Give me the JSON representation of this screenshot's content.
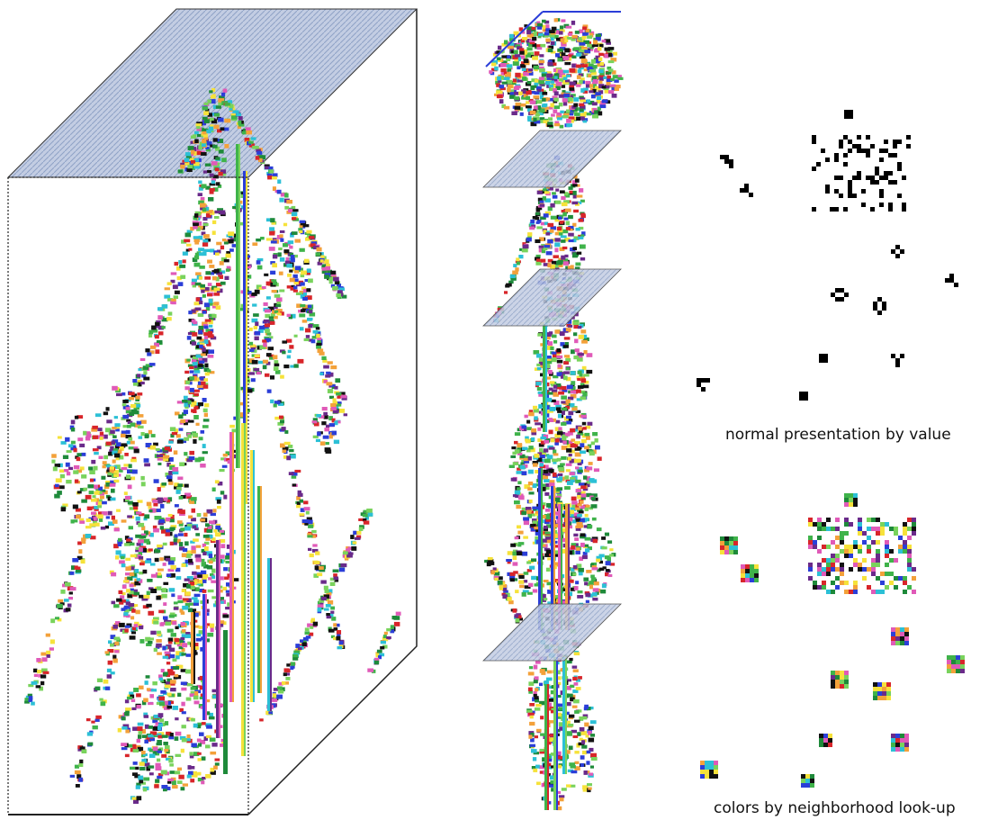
{
  "captions": {
    "value_view": "normal presentation by value",
    "lookup_view": "colors by neighborhood look-up"
  },
  "palette": {
    "mark_colors": [
      "#1e8a3a",
      "#d8252a",
      "#f6e23a",
      "#2b3ed8",
      "#2cc0d6",
      "#e05ab8",
      "#79d35c",
      "#f3a13a",
      "#111111",
      "#3fb34a",
      "#6a2a8a"
    ],
    "plane_fill": "#c3cde3",
    "plane_hatch": "#8fa2c6",
    "outline": "#222222",
    "cell_black": "#000000"
  }
}
